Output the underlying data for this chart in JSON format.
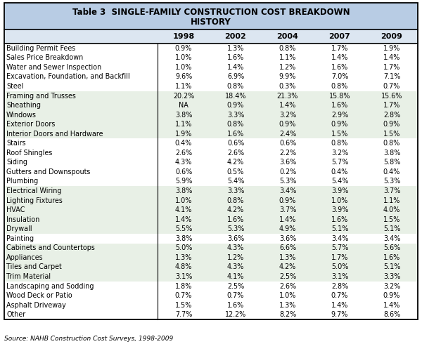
{
  "title_line1": "Table 3  SINGLE-FAMILY CONSTRUCTION COST BREAKDOWN",
  "title_line2": "HISTORY",
  "title_bg": "#b8cce4",
  "header_bg": "#dce6f1",
  "row_bg_light": "#e8f0e6",
  "row_bg_white": "#ffffff",
  "footer": "Source: NAHB Construction Cost Surveys, 1998-2009",
  "columns": [
    "1998",
    "2002",
    "2004",
    "2007",
    "2009"
  ],
  "rows": [
    [
      "Building Permit Fees",
      "0.9%",
      "1.3%",
      "0.8%",
      "1.7%",
      "1.9%"
    ],
    [
      "Sales Price Breakdown",
      "1.0%",
      "1.6%",
      "1.1%",
      "1.4%",
      "1.4%"
    ],
    [
      "Water and Sewer Inspection",
      "1.0%",
      "1.4%",
      "1.2%",
      "1.6%",
      "1.7%"
    ],
    [
      "Excavation, Foundation, and Backfill",
      "9.6%",
      "6.9%",
      "9.9%",
      "7.0%",
      "7.1%"
    ],
    [
      "Steel",
      "1.1%",
      "0.8%",
      "0.3%",
      "0.8%",
      "0.7%"
    ],
    [
      "Framing and Trusses",
      "20.2%",
      "18.4%",
      "21.3%",
      "15.8%",
      "15.6%"
    ],
    [
      "Sheathing",
      "NA",
      "0.9%",
      "1.4%",
      "1.6%",
      "1.7%"
    ],
    [
      "Windows",
      "3.8%",
      "3.3%",
      "3.2%",
      "2.9%",
      "2.8%"
    ],
    [
      "Exterior Doors",
      "1.1%",
      "0.8%",
      "0.9%",
      "0.9%",
      "0.9%"
    ],
    [
      "Interior Doors and Hardware",
      "1.9%",
      "1.6%",
      "2.4%",
      "1.5%",
      "1.5%"
    ],
    [
      "Stairs",
      "0.4%",
      "0.6%",
      "0.6%",
      "0.8%",
      "0.8%"
    ],
    [
      "Roof Shingles",
      "2.6%",
      "2.6%",
      "2.2%",
      "3.2%",
      "3.8%"
    ],
    [
      "Siding",
      "4.3%",
      "4.2%",
      "3.6%",
      "5.7%",
      "5.8%"
    ],
    [
      "Gutters and Downspouts",
      "0.6%",
      "0.5%",
      "0.2%",
      "0.4%",
      "0.4%"
    ],
    [
      "Plumbing",
      "5.9%",
      "5.4%",
      "5.3%",
      "5.4%",
      "5.3%"
    ],
    [
      "Electrical Wiring",
      "3.8%",
      "3.3%",
      "3.4%",
      "3.9%",
      "3.7%"
    ],
    [
      "Lighting Fixtures",
      "1.0%",
      "0.8%",
      "0.9%",
      "1.0%",
      "1.1%"
    ],
    [
      "HVAC",
      "4.1%",
      "4.2%",
      "3.7%",
      "3.9%",
      "4.0%"
    ],
    [
      "Insulation",
      "1.4%",
      "1.6%",
      "1.4%",
      "1.6%",
      "1.5%"
    ],
    [
      "Drywall",
      "5.5%",
      "5.3%",
      "4.9%",
      "5.1%",
      "5.1%"
    ],
    [
      "Painting",
      "3.8%",
      "3.6%",
      "3.6%",
      "3.4%",
      "3.4%"
    ],
    [
      "Cabinets and Countertops",
      "5.0%",
      "4.3%",
      "6.6%",
      "5.7%",
      "5.6%"
    ],
    [
      "Appliances",
      "1.3%",
      "1.2%",
      "1.3%",
      "1.7%",
      "1.6%"
    ],
    [
      "Tiles and Carpet",
      "4.8%",
      "4.3%",
      "4.2%",
      "5.0%",
      "5.1%"
    ],
    [
      "Trim Material",
      "3.1%",
      "4.1%",
      "2.5%",
      "3.1%",
      "3.3%"
    ],
    [
      "Landscaping and Sodding",
      "1.8%",
      "2.5%",
      "2.6%",
      "2.8%",
      "3.2%"
    ],
    [
      "Wood Deck or Patio",
      "0.7%",
      "0.7%",
      "1.0%",
      "0.7%",
      "0.9%"
    ],
    [
      "Asphalt Driveway",
      "1.5%",
      "1.6%",
      "1.3%",
      "1.4%",
      "1.4%"
    ],
    [
      "Other",
      "7.7%",
      "12.2%",
      "8.2%",
      "9.7%",
      "8.6%"
    ]
  ],
  "shaded_rows": [
    5,
    6,
    7,
    8,
    9,
    15,
    16,
    17,
    18,
    19,
    21,
    22,
    23,
    24
  ]
}
